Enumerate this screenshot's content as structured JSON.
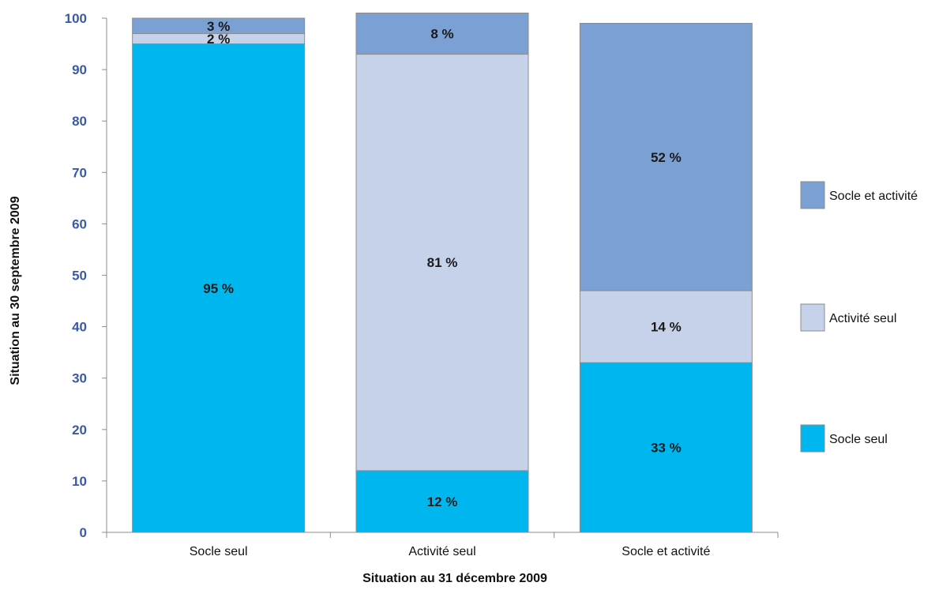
{
  "chart_data": {
    "type": "bar",
    "stacked": true,
    "categories": [
      "Socle seul",
      "Activité seul",
      "Socle et activité"
    ],
    "series": [
      {
        "name": "Socle seul",
        "values": [
          95,
          12,
          33
        ],
        "labels": [
          "95 %",
          "12 %",
          "33 %"
        ],
        "color": "#00b6ef"
      },
      {
        "name": "Activité seul",
        "values": [
          2,
          81,
          14
        ],
        "labels": [
          "2 %",
          "81 %",
          "14 %"
        ],
        "color": "#c6d2ea"
      },
      {
        "name": "Socle et activité",
        "values": [
          3,
          8,
          52
        ],
        "labels": [
          "3 %",
          "8 %",
          "52 %"
        ],
        "color": "#7aa0d4"
      }
    ],
    "xlabel": "Situation au 31 décembre 2009",
    "ylabel": "Situation au 30 septembre 2009",
    "ylim": [
      0,
      100
    ],
    "yticks": [
      "0",
      "10",
      "20",
      "30",
      "40",
      "50",
      "60",
      "70",
      "80",
      "90",
      "100"
    ],
    "grid": false,
    "legend_position": "right"
  }
}
